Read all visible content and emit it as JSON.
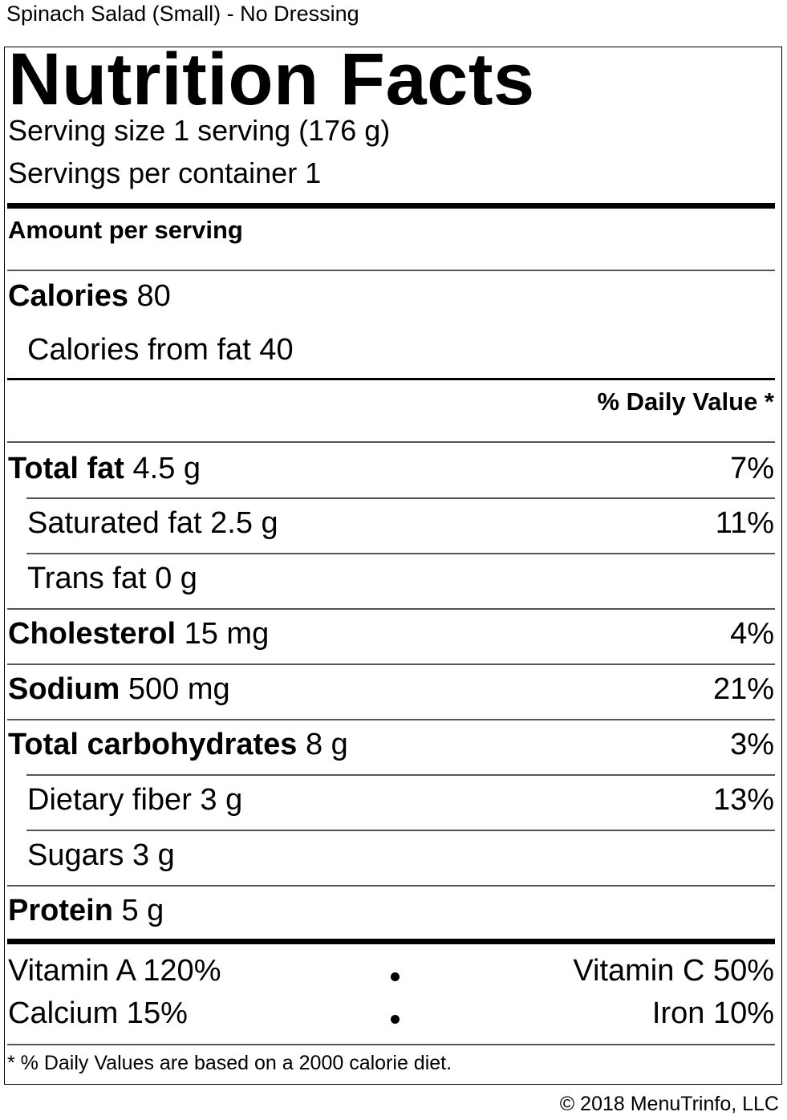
{
  "caption": "Spinach Salad (Small) - No Dressing",
  "label": {
    "title": "Nutrition Facts",
    "serving_size": "Serving size 1 serving (176 g)",
    "servings_per_container": "Servings per container 1",
    "amount_per_serving": "Amount per serving",
    "calories": {
      "label": "Calories",
      "value": "80"
    },
    "calories_from_fat": "Calories from fat 40",
    "daily_value_header": "% Daily Value *",
    "nutrients": [
      {
        "name": "Total fat",
        "amount": "4.5 g",
        "dv": "7%"
      },
      {
        "name": "Saturated fat 2.5 g",
        "amount": "",
        "dv": "11%"
      },
      {
        "name": "Trans fat 0 g",
        "amount": "",
        "dv": ""
      },
      {
        "name": "Cholesterol",
        "amount": "15 mg",
        "dv": "4%"
      },
      {
        "name": "Sodium",
        "amount": "500 mg",
        "dv": "21%"
      },
      {
        "name": "Total carbohydrates",
        "amount": "8 g",
        "dv": "3%"
      },
      {
        "name": "Dietary fiber 3 g",
        "amount": "",
        "dv": "13%"
      },
      {
        "name": "Sugars 3 g",
        "amount": "",
        "dv": ""
      },
      {
        "name": "Protein",
        "amount": "5 g",
        "dv": ""
      }
    ],
    "vitamins": {
      "vitamin_a": "Vitamin A 120%",
      "vitamin_c": "Vitamin C 50%",
      "calcium": "Calcium 15%",
      "iron": "Iron 10%"
    },
    "footnote": "* % Daily Values are based on a 2000 calorie diet."
  },
  "copyright": "© 2018 MenuTrinfo, LLC"
}
